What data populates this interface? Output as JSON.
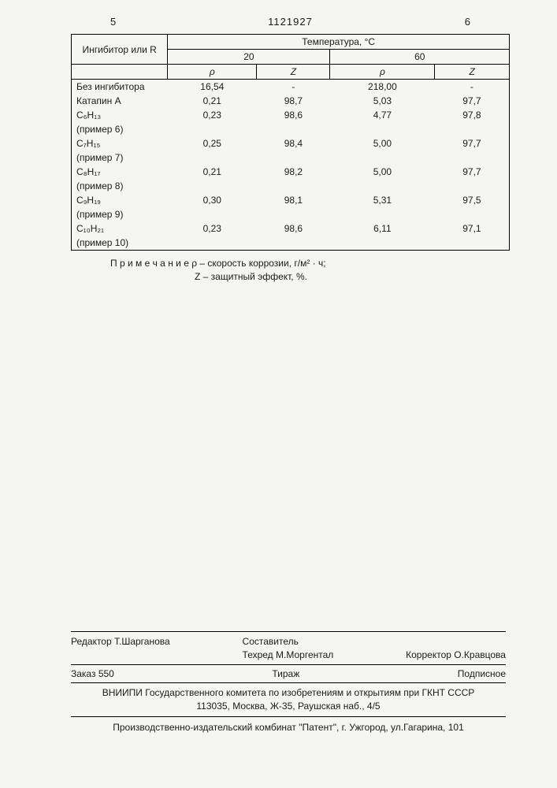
{
  "header": {
    "page_left": "5",
    "doc_number": "1121927",
    "page_right": "6"
  },
  "table": {
    "col1_header": "Ингибитор или R",
    "temp_header": "Температура, °C",
    "temp_20": "20",
    "temp_60": "60",
    "rho": "ρ",
    "z": "Z",
    "rows": [
      {
        "label": "Без ингибитора",
        "r20": "16,54",
        "z20": "-",
        "r60": "218,00",
        "z60": "-"
      },
      {
        "label": "Катапин А",
        "r20": "0,21",
        "z20": "98,7",
        "r60": "5,03",
        "z60": "97,7"
      },
      {
        "label": "C₆H₁₃",
        "r20": "0,23",
        "z20": "98,6",
        "r60": "4,77",
        "z60": "97,8"
      },
      {
        "label": "(пример 6)",
        "r20": "",
        "z20": "",
        "r60": "",
        "z60": ""
      },
      {
        "label": "C₇H₁₅",
        "r20": "0,25",
        "z20": "98,4",
        "r60": "5,00",
        "z60": "97,7"
      },
      {
        "label": "(пример 7)",
        "r20": "",
        "z20": "",
        "r60": "",
        "z60": ""
      },
      {
        "label": "C₈H₁₇",
        "r20": "0,21",
        "z20": "98,2",
        "r60": "5,00",
        "z60": "97,7"
      },
      {
        "label": "(пример 8)",
        "r20": "",
        "z20": "",
        "r60": "",
        "z60": ""
      },
      {
        "label": "C₉H₁₉",
        "r20": "0,30",
        "z20": "98,1",
        "r60": "5,31",
        "z60": "97,5"
      },
      {
        "label": "(пример 9)",
        "r20": "",
        "z20": "",
        "r60": "",
        "z60": ""
      },
      {
        "label": "C₁₀H₂₁",
        "r20": "0,23",
        "z20": "98,6",
        "r60": "6,11",
        "z60": "97,1"
      },
      {
        "label": "(пример 10)",
        "r20": "",
        "z20": "",
        "r60": "",
        "z60": ""
      }
    ]
  },
  "note": {
    "line1": "П р и м е ч а н и е ρ – скорость коррозии, г/м² · ч;",
    "line2": "Z – защитный эффект, %."
  },
  "footer": {
    "editor_label": "Редактор",
    "editor": "Т.Шарганова",
    "compiler_label": "Составитель",
    "techred_label": "Техред",
    "techred": "М.Моргентал",
    "corrector_label": "Корректор",
    "corrector": "О.Кравцова",
    "order_label": "Заказ",
    "order_num": "550",
    "tirage": "Тираж",
    "subscribe": "Подписное",
    "org_line1": "ВНИИПИ Государственного комитета по изобретениям и открытиям при ГКНТ СССР",
    "org_line2": "113035, Москва, Ж-35, Раушская наб., 4/5",
    "printer": "Производственно-издательский комбинат \"Патент\", г. Ужгород, ул.Гагарина, 101"
  }
}
